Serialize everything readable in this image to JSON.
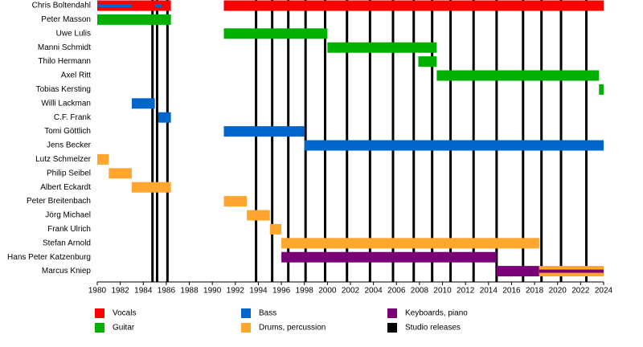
{
  "chart_data": {
    "type": "timeline",
    "xlim": [
      1980,
      2024
    ],
    "xticks": [
      1980,
      1982,
      1984,
      1986,
      1988,
      1990,
      1992,
      1994,
      1996,
      1998,
      2000,
      2002,
      2004,
      2006,
      2008,
      2010,
      2012,
      2014,
      2016,
      2018,
      2020,
      2022,
      2024
    ],
    "roles": [
      {
        "name": "Vocals",
        "color": "#ff0000"
      },
      {
        "name": "Guitar",
        "color": "#00b000"
      },
      {
        "name": "Bass",
        "color": "#0066cc"
      },
      {
        "name": "Drums, percussion",
        "color": "#ffa530"
      },
      {
        "name": "Keyboards, piano",
        "color": "#7a0078"
      }
    ],
    "releases": {
      "name": "Studio releases",
      "color": "#000000",
      "x": [
        1984.8,
        1985.2,
        1986.1,
        1993.8,
        1995.2,
        1996.6,
        1998.1,
        1999.8,
        2001.7,
        2003.7,
        2005.7,
        2007.5,
        2009.1,
        2010.7,
        2012.7,
        2014.7,
        2017.0,
        2018.6,
        2020.3,
        2022.5
      ]
    },
    "members": [
      {
        "name": "Chris Boltendahl",
        "periods": [
          {
            "role": "Vocals",
            "start": 1980,
            "end": 1986.4
          },
          {
            "role": "Vocals",
            "start": 1991,
            "end": 2024
          },
          {
            "role": "Bass",
            "start": 1980,
            "end": 1983,
            "style": "thin"
          },
          {
            "role": "Bass",
            "start": 1985,
            "end": 1985.6,
            "style": "thin"
          }
        ]
      },
      {
        "name": "Peter Masson",
        "periods": [
          {
            "role": "Guitar",
            "start": 1980,
            "end": 1986.4
          }
        ]
      },
      {
        "name": "Uwe Lulis",
        "periods": [
          {
            "role": "Guitar",
            "start": 1991,
            "end": 2000
          }
        ]
      },
      {
        "name": "Manni Schmidt",
        "periods": [
          {
            "role": "Guitar",
            "start": 2000,
            "end": 2009.5
          }
        ]
      },
      {
        "name": "Thilo Hermann",
        "periods": [
          {
            "role": "Guitar",
            "start": 2007.9,
            "end": 2009.5
          }
        ]
      },
      {
        "name": "Axel Ritt",
        "periods": [
          {
            "role": "Guitar",
            "start": 2009.5,
            "end": 2023.6
          }
        ]
      },
      {
        "name": "Tobias Kersting",
        "periods": [
          {
            "role": "Guitar",
            "start": 2023.6,
            "end": 2024
          }
        ]
      },
      {
        "name": "Willi Lackman",
        "periods": [
          {
            "role": "Bass",
            "start": 1983,
            "end": 1985
          }
        ]
      },
      {
        "name": "C.F. Frank",
        "periods": [
          {
            "role": "Bass",
            "start": 1985.3,
            "end": 1986.4
          }
        ]
      },
      {
        "name": "Tomi Göttlich",
        "periods": [
          {
            "role": "Bass",
            "start": 1991,
            "end": 1998
          }
        ]
      },
      {
        "name": "Jens Becker",
        "periods": [
          {
            "role": "Bass",
            "start": 1998,
            "end": 2024
          }
        ]
      },
      {
        "name": "Lutz Schmelzer",
        "periods": [
          {
            "role": "Drums, percussion",
            "start": 1980,
            "end": 1981
          }
        ]
      },
      {
        "name": "Philip Seibel",
        "periods": [
          {
            "role": "Drums, percussion",
            "start": 1981,
            "end": 1983
          }
        ]
      },
      {
        "name": "Albert Eckardt",
        "periods": [
          {
            "role": "Drums, percussion",
            "start": 1983,
            "end": 1986.4
          }
        ]
      },
      {
        "name": "Peter Breitenbach",
        "periods": [
          {
            "role": "Drums, percussion",
            "start": 1991,
            "end": 1993
          }
        ]
      },
      {
        "name": "Jörg Michael",
        "periods": [
          {
            "role": "Drums, percussion",
            "start": 1993,
            "end": 1995
          }
        ]
      },
      {
        "name": "Frank Ulrich",
        "periods": [
          {
            "role": "Drums, percussion",
            "start": 1995,
            "end": 1996
          }
        ]
      },
      {
        "name": "Stefan Arnold",
        "periods": [
          {
            "role": "Drums, percussion",
            "start": 1996,
            "end": 2018.4
          }
        ]
      },
      {
        "name": "Hans Peter Katzenburg",
        "periods": [
          {
            "role": "Keyboards, piano",
            "start": 1996,
            "end": 2014.7
          }
        ]
      },
      {
        "name": "Marcus Kniep",
        "periods": [
          {
            "role": "Keyboards, piano",
            "start": 2014.7,
            "end": 2018.4
          },
          {
            "role": "Drums, percussion",
            "start": 2018.4,
            "end": 2024
          },
          {
            "role": "Keyboards, piano",
            "start": 2018.4,
            "end": 2024,
            "style": "thin"
          }
        ]
      }
    ]
  }
}
